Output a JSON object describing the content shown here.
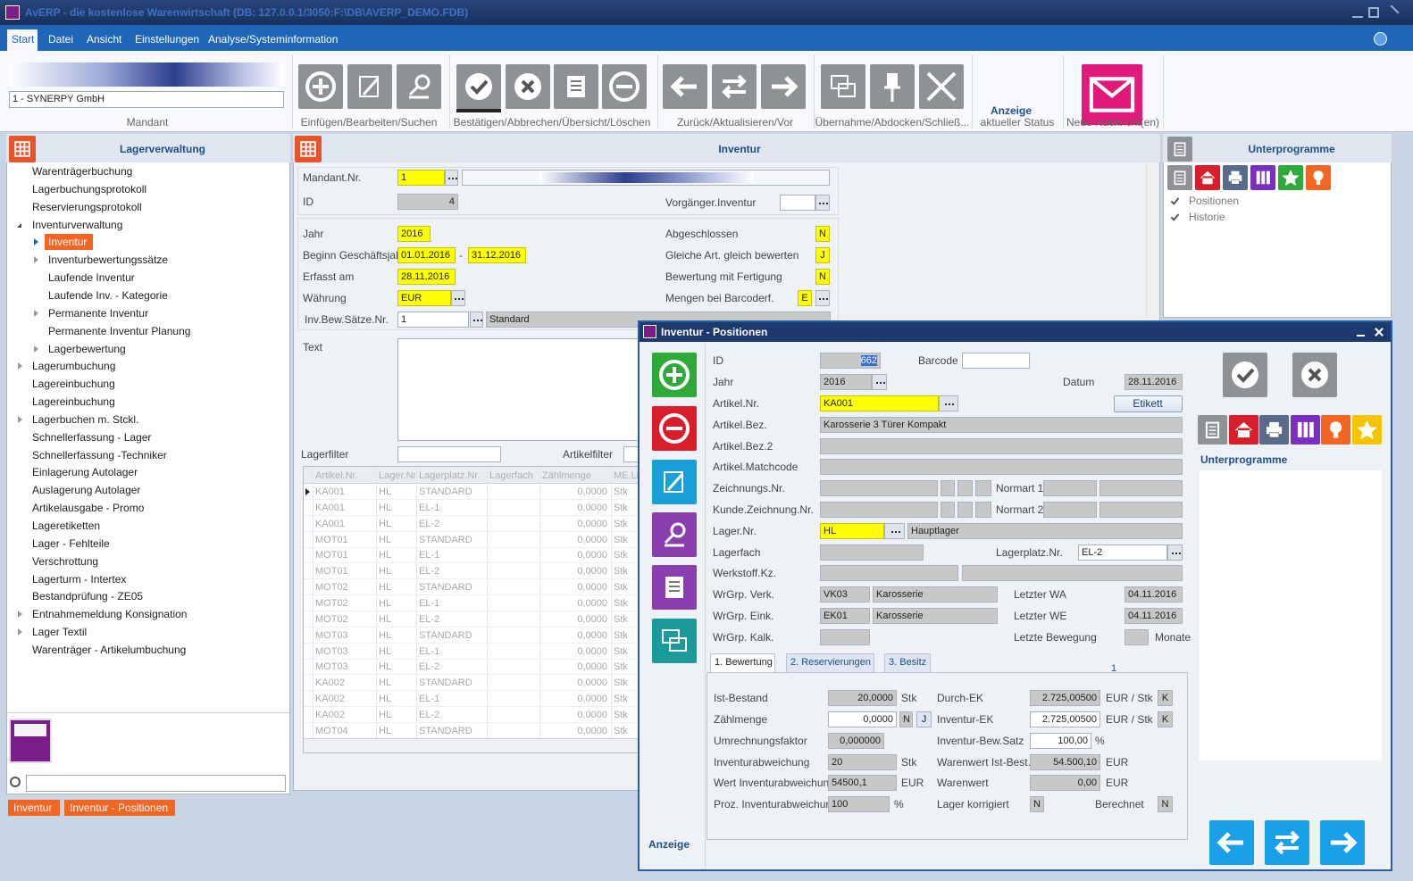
{
  "window": {
    "title": "AvERP - die kostenlose Warenwirtschaft    (DB: 127.0.0.1/3050:F:\\DB\\AVERP_DEMO.FDB)"
  },
  "menu": [
    "Start",
    "Datei",
    "Ansicht",
    "Einstellungen",
    "Analyse/Systeminformation"
  ],
  "ribbon": {
    "mandant": "1 - SYNERPY GmbH",
    "groups": [
      "Mandant",
      "Einfügen/Bearbeiten/Suchen",
      "Bestätigen/Abbrechen/Übersicht/Löschen",
      "Zurück/Aktualisieren/Vor",
      "Übernahme/Abdocken/Schließ..."
    ],
    "anzeige": "Anzeige",
    "status": "aktueller Status",
    "messages": "Neue Nachricht(en)"
  },
  "navigation": {
    "title": "Lagerverwaltung",
    "items": [
      "Warenträgerbuchung",
      "Lagerbuchungsprotokoll",
      "Reservierungsprotokoll",
      "Inventurverwaltung",
      "Inventur",
      "Inventurbewertungssätze",
      "Laufende Inventur",
      "Laufende Inv. - Kategorie",
      "Permanente Inventur",
      "Permanente Inventur Planung",
      "Lagerbewertung",
      "Lagerumbuchung",
      "Lagereinbuchung",
      "Lagereinbuchung",
      "Lagerbuchen m. Stckl.",
      "Schnellerfassung - Lager",
      "Schnellerfassung -Techniker",
      "Einlagerung Autolager",
      "Auslagerung Autolager",
      "Artikelausgabe - Promo",
      "Lageretiketten",
      "Lager - Fehlteile",
      "Verschrottung",
      "Lagerturm - Intertex",
      "Bestandprüfung - ZE05",
      "Entnahmemeldung Konsignation",
      "Lager Textil",
      "Warenträger - Artikelumbuchung"
    ]
  },
  "inventur": {
    "title": "Inventur",
    "fields": [
      {
        "label": "Mandant.Nr.",
        "value": "1"
      },
      {
        "label": "ID",
        "value": "4"
      },
      {
        "label": "Vorgänger.Inventur"
      },
      {
        "label": "Jahr",
        "value": "2016"
      },
      {
        "label": "Beginn Geschäftsjahr",
        "value": "01.01.2016",
        "separator": "-",
        "value2": "31.12.2016"
      },
      {
        "label": "Erfasst am",
        "value": "28.11.2016"
      },
      {
        "label": "Währung",
        "value": "EUR"
      },
      {
        "label": "Inv.Bew.Sätze.Nr.",
        "value": "1",
        "value2": "Standard"
      },
      {
        "label": "Abgeschlossen",
        "value": "N"
      },
      {
        "label": "Gleiche Art. gleich bewerten",
        "value": "J"
      },
      {
        "label": "Bewertung mit Fertigung",
        "value": "N"
      },
      {
        "label": "Mengen bei Barcoderf.",
        "value": "E"
      },
      {
        "label": "Text"
      },
      {
        "label": "Lagerfilter"
      },
      {
        "label": "Artikelfilter"
      }
    ],
    "grid": {
      "columns": [
        "Artikel.Nr.",
        "Lager.Nr",
        "Lagerplatz.Nr.",
        "Lagerfach",
        "Zählmenge",
        "ME.Li"
      ],
      "rows": [
        {
          "artikel": "KA001",
          "lager": "HL",
          "platz": "STANDARD",
          "menge": "0,0000",
          "me": "Stk"
        },
        {
          "artikel": "KA001",
          "lager": "HL",
          "platz": "EL-1",
          "menge": "0,0000",
          "me": "Stk"
        },
        {
          "artikel": "KA001",
          "lager": "HL",
          "platz": "EL-2",
          "menge": "0,0000",
          "me": "Stk"
        },
        {
          "artikel": "MOT01",
          "lager": "HL",
          "platz": "STANDARD",
          "menge": "0,0000",
          "me": "Stk"
        },
        {
          "artikel": "MOT01",
          "lager": "HL",
          "platz": "EL-1",
          "menge": "0,0000",
          "me": "Stk"
        },
        {
          "artikel": "MOT01",
          "lager": "HL",
          "platz": "EL-2",
          "menge": "0,0000",
          "me": "Stk"
        },
        {
          "artikel": "MOT02",
          "lager": "HL",
          "platz": "STANDARD",
          "menge": "0,0000",
          "me": "Stk"
        },
        {
          "artikel": "MOT02",
          "lager": "HL",
          "platz": "EL-1",
          "menge": "0,0000",
          "me": "Stk"
        },
        {
          "artikel": "MOT02",
          "lager": "HL",
          "platz": "EL-2",
          "menge": "0,0000",
          "me": "Stk"
        },
        {
          "artikel": "MOT03",
          "lager": "HL",
          "platz": "STANDARD",
          "menge": "0,0000",
          "me": "Stk"
        },
        {
          "artikel": "MOT03",
          "lager": "HL",
          "platz": "EL-1",
          "menge": "0,0000",
          "me": "Stk"
        },
        {
          "artikel": "MOT03",
          "lager": "HL",
          "platz": "EL-2",
          "menge": "0,0000",
          "me": "Stk"
        },
        {
          "artikel": "KA002",
          "lager": "HL",
          "platz": "STANDARD",
          "menge": "0,0000",
          "me": "Stk"
        },
        {
          "artikel": "KA002",
          "lager": "HL",
          "platz": "EL-1",
          "menge": "0,0000",
          "me": "Stk"
        },
        {
          "artikel": "KA002",
          "lager": "HL",
          "platz": "EL-2",
          "menge": "0,0000",
          "me": "Stk"
        },
        {
          "artikel": "MOT04",
          "lager": "HL",
          "platz": "STANDARD",
          "menge": "0,0000",
          "me": "Stk"
        }
      ]
    }
  },
  "subprograms": {
    "title": "Unterprogramme",
    "items": [
      "Positionen",
      "Historie"
    ]
  },
  "dialog": {
    "title": "Inventur - Positionen",
    "etikett": "Etikett",
    "fields": [
      {
        "label": "ID",
        "value": "662"
      },
      {
        "label": "Barcode"
      },
      {
        "label": "Jahr",
        "value": "2016"
      },
      {
        "label": "Datum",
        "value": "28.11.2016"
      },
      {
        "label": "Artikel.Nr.",
        "value": "KA001"
      },
      {
        "label": "Artikel.Bez.",
        "value": "Karosserie 3 Türer Kompakt"
      },
      {
        "label": "Artikel.Bez.2"
      },
      {
        "label": "Artikel.Matchcode"
      },
      {
        "label": "Zeichnungs.Nr."
      },
      {
        "label": "Normart 1"
      },
      {
        "label": "Kunde.Zeichnung.Nr."
      },
      {
        "label": "Normart 2"
      },
      {
        "label": "Lager.Nr.",
        "value": "HL",
        "value2": "Hauptlager"
      },
      {
        "label": "Lagerfach"
      },
      {
        "label": "Lagerplatz.Nr.",
        "value": "EL-2"
      },
      {
        "label": "Werkstoff.Kz."
      },
      {
        "label": "WrGrp. Verk.",
        "value": "VK03",
        "value2": "Karosserie"
      },
      {
        "label": "Letzter WA",
        "value": "04.11.2016"
      },
      {
        "label": "WrGrp. Eink.",
        "value": "EK01",
        "value2": "Karosserie"
      },
      {
        "label": "Letzter WE",
        "value": "04.11.2016"
      },
      {
        "label": "WrGrp. Kalk."
      },
      {
        "label": "Letzte Bewegung",
        "unit": "Monate"
      }
    ],
    "tabs": [
      "1. Bewertung",
      "2. Reservierungen",
      "3. Besitz"
    ],
    "page_number": "1",
    "tab_fields": [
      {
        "label": "Ist-Bestand",
        "value": "20,0000",
        "unit": "Stk"
      },
      {
        "label": "Durch-EK",
        "value": "2.725,00500",
        "unit": "EUR / Stk",
        "flag": "K"
      },
      {
        "label": "Zählmenge",
        "value": "0,0000",
        "flag": "N",
        "flag2": "J"
      },
      {
        "label": "Inventur-EK",
        "value": "2.725,00500",
        "unit": "EUR / Stk",
        "flag": "K"
      },
      {
        "label": "Umrechnungsfaktor",
        "value": "0,000000"
      },
      {
        "label": "Inventur-Bew.Satz",
        "value": "100,00",
        "unit": "%"
      },
      {
        "label": "Inventurabweichung",
        "value": "20",
        "unit": "Stk"
      },
      {
        "label": "Warenwert Ist-Best.",
        "value": "54.500,10",
        "unit": "EUR"
      },
      {
        "label": "Wert Inventurabweichung",
        "value": "54500,1",
        "unit": "EUR"
      },
      {
        "label": "Warenwert",
        "value": "0,00",
        "unit": "EUR"
      },
      {
        "label": "Proz. Inventurabweichung",
        "value": "100",
        "unit": "%"
      },
      {
        "label": "Lager korrigiert",
        "value": "N"
      },
      {
        "label": "Berechnet",
        "value": "N"
      }
    ],
    "subprograms": "Unterprogramme",
    "anzeige": "Anzeige"
  },
  "status_tabs": [
    "Inventur",
    "Inventur - Positionen"
  ]
}
